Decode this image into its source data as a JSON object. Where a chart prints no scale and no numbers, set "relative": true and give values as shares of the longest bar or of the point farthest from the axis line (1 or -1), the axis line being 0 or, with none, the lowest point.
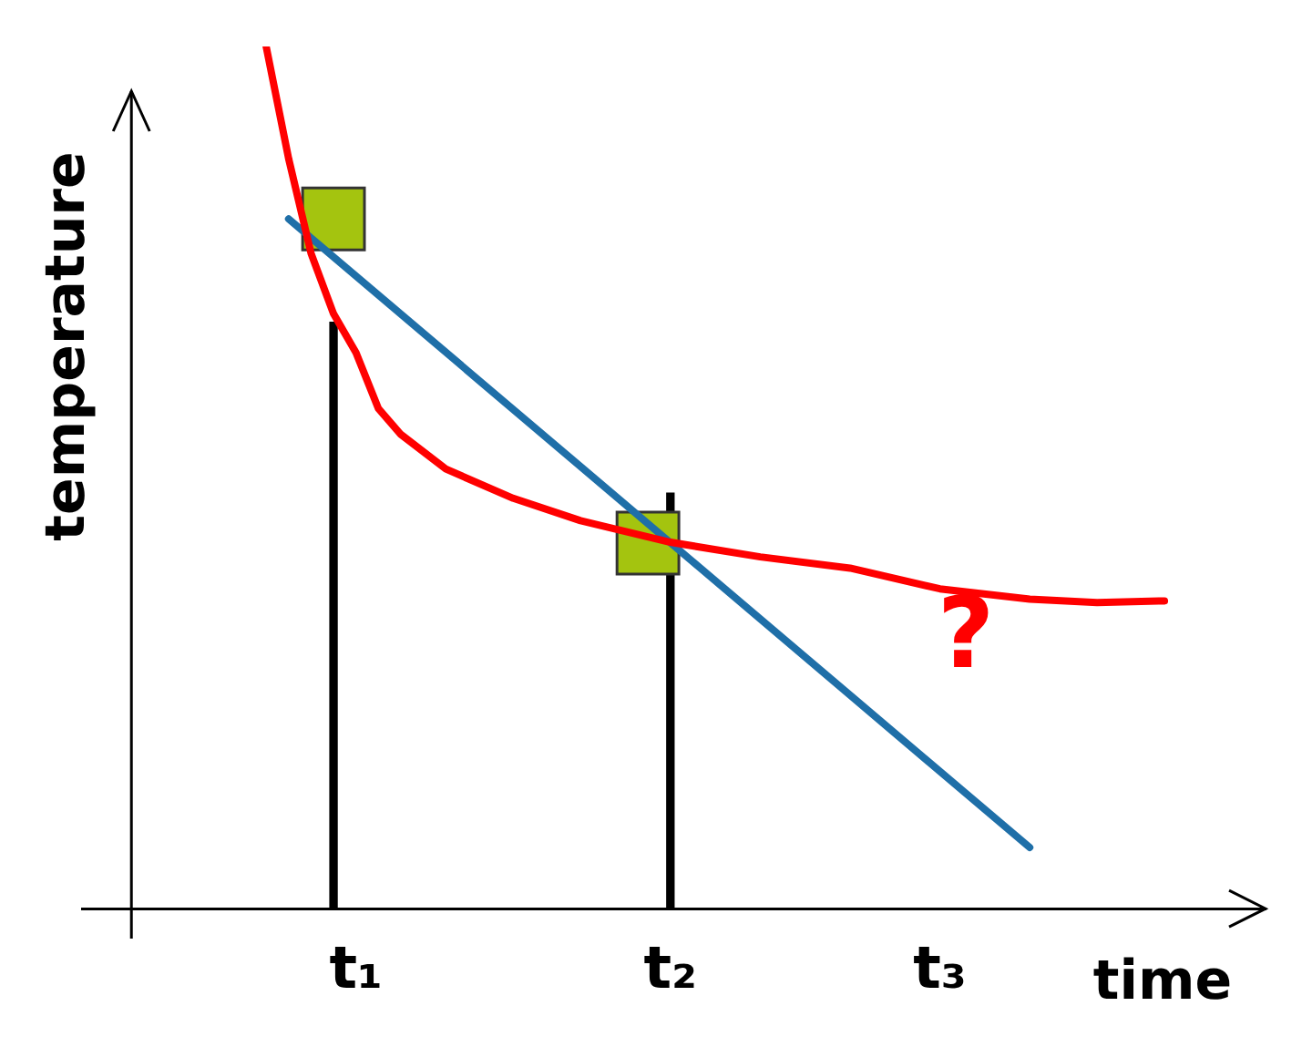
{
  "chart_data": {
    "type": "line",
    "relative": true,
    "xlabel": "time",
    "ylabel": "temperature",
    "legend": false,
    "grid": false,
    "tick_labels": "x",
    "categories": [
      null,
      null,
      null,
      null,
      null,
      null,
      null,
      null,
      null,
      null,
      "t₁",
      null,
      null,
      null,
      null,
      null,
      null,
      null,
      null,
      null,
      null,
      null,
      null,
      null,
      "t₂",
      null,
      null,
      null,
      null,
      null,
      null,
      null,
      null,
      null,
      null,
      null,
      "t₃",
      null,
      null,
      null,
      null,
      null,
      null,
      null,
      null,
      null,
      null,
      null,
      null,
      null,
      null
    ],
    "series": [
      {
        "type": "bar",
        "color": "#000000",
        "values": [
          null,
          null,
          null,
          null,
          null,
          null,
          null,
          null,
          null,
          0.68,
          null,
          null,
          null,
          null,
          null,
          null,
          null,
          null,
          null,
          null,
          null,
          null,
          null,
          null,
          0.482,
          null,
          null,
          null,
          null,
          null,
          null,
          null,
          null,
          null,
          null,
          null,
          null,
          null,
          null,
          null,
          null,
          null,
          null,
          null,
          null,
          null,
          null,
          null,
          null,
          null,
          null
        ]
      },
      {
        "type": "scatter",
        "color": "#a4c40f",
        "marker": "square",
        "values": [
          null,
          null,
          null,
          null,
          null,
          null,
          null,
          null,
          null,
          0.8,
          null,
          null,
          null,
          null,
          null,
          null,
          null,
          null,
          null,
          null,
          null,
          null,
          null,
          0.424,
          null,
          null,
          null,
          null,
          null,
          null,
          null,
          null,
          null,
          null,
          null,
          null,
          null,
          null,
          null,
          null,
          null,
          null,
          null,
          null,
          null,
          null,
          null,
          null,
          null,
          null,
          null
        ]
      },
      {
        "color": "#1f6fa8",
        "marker": "none",
        "values": [
          null,
          null,
          null,
          null,
          null,
          null,
          null,
          0.8,
          null,
          null,
          null,
          null,
          null,
          null,
          null,
          null,
          null,
          null,
          null,
          null,
          null,
          null,
          null,
          null,
          null,
          null,
          null,
          null,
          null,
          null,
          null,
          null,
          null,
          null,
          null,
          null,
          null,
          null,
          null,
          null,
          0.071,
          null,
          null,
          null,
          null,
          null,
          null,
          null,
          null,
          null,
          null
        ]
      },
      {
        "color": "#ff0000",
        "marker": "none",
        "values": [
          null,
          null,
          null,
          null,
          null,
          null,
          1.0,
          0.87,
          0.76,
          0.69,
          0.645,
          0.58,
          0.55,
          null,
          0.51,
          null,
          null,
          0.476,
          null,
          null,
          0.45,
          null,
          null,
          null,
          0.425,
          null,
          null,
          null,
          0.408,
          null,
          null,
          null,
          0.395,
          null,
          null,
          null,
          0.371,
          null,
          null,
          null,
          0.359,
          null,
          null,
          0.355,
          null,
          null,
          0.357,
          null,
          null,
          null,
          null
        ]
      }
    ],
    "annotations": [
      "?"
    ]
  }
}
